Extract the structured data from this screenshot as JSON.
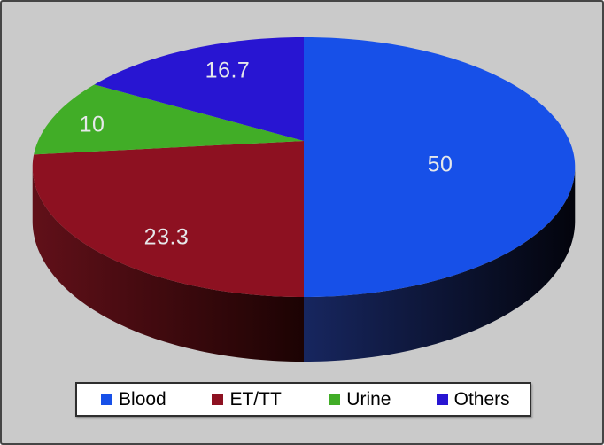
{
  "chart_data": {
    "type": "pie",
    "style": "3d-perspective",
    "title": "",
    "legend_position": "bottom",
    "direction": "clockwise",
    "start_angle_deg": 0,
    "total": 100,
    "slices": [
      {
        "label": "Blood",
        "value": 50,
        "value_label": "50",
        "color": "#1750e8",
        "wall_from": "#17265f",
        "wall_to": "#03040c"
      },
      {
        "label": "ET/TT",
        "value": 23.3,
        "value_label": "23.3",
        "color": "#8d1121",
        "wall_from": "#611019",
        "wall_to": "#1c0303"
      },
      {
        "label": "Urine",
        "value": 10,
        "value_label": "10",
        "color": "#41ad27"
      },
      {
        "label": "Others",
        "value": 16.7,
        "value_label": "16.7",
        "color": "#2815d2"
      }
    ],
    "value_label_color": "#e6e8ea",
    "background": "#cacaca",
    "frame_border_color": "#454545",
    "legend_bg": "#ffffff",
    "legend_border_color": "#2e2e2e"
  }
}
